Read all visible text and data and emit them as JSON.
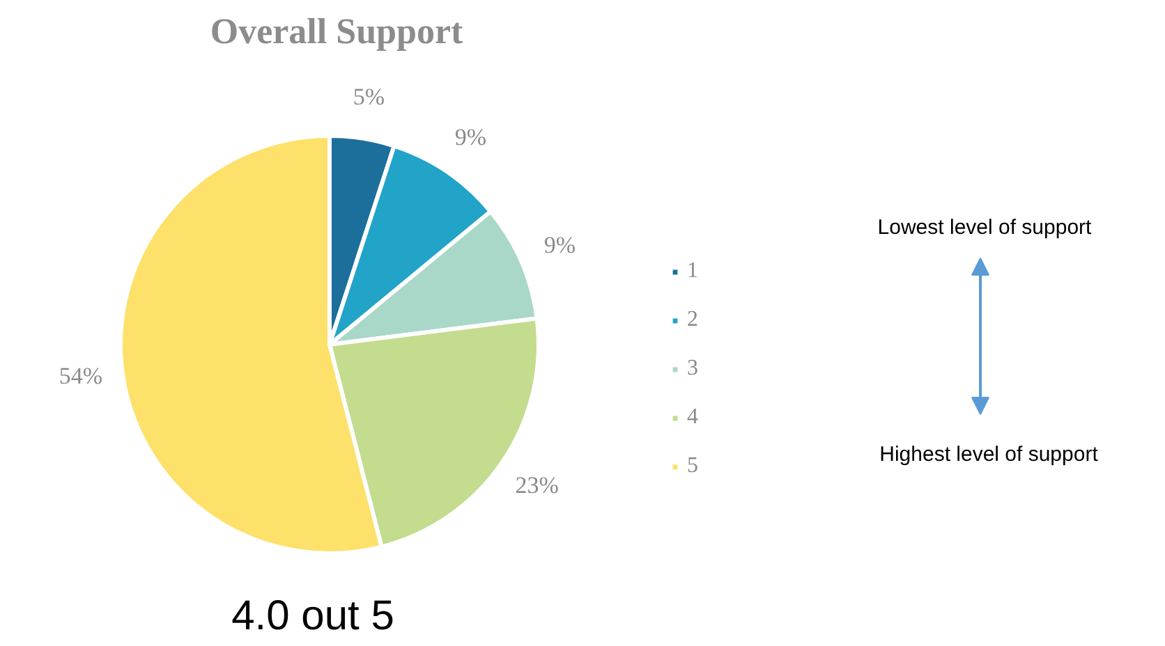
{
  "chart_data": {
    "type": "pie",
    "title": "Overall Support",
    "categories": [
      "1",
      "2",
      "3",
      "4",
      "5"
    ],
    "values": [
      5,
      9,
      9,
      23,
      54
    ],
    "colors": [
      "#1b6f9a",
      "#22a3c8",
      "#a9d8c8",
      "#c3dc8e",
      "#fde16a"
    ],
    "value_labels": [
      "5%",
      "9%",
      "9%",
      "23%",
      "54%"
    ],
    "legend": "right",
    "annotations": [
      "Lowest level of support",
      "Highest level of support",
      "4.0 out 5"
    ]
  }
}
